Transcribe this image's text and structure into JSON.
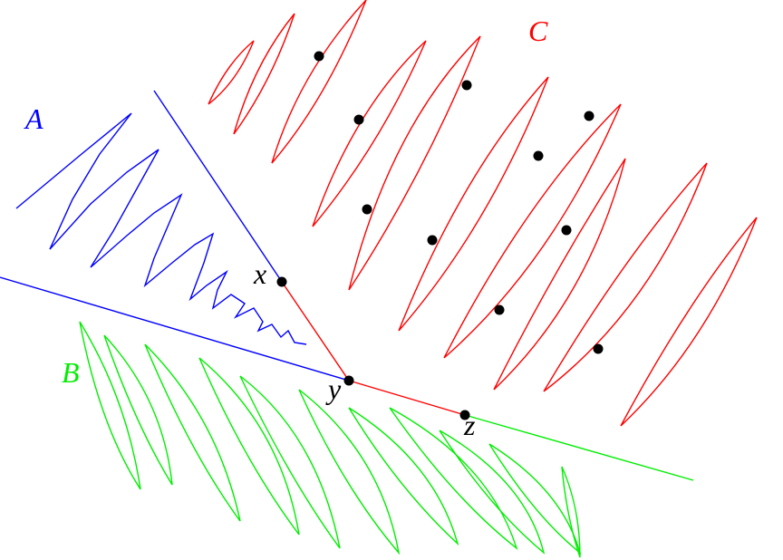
{
  "regions": [
    {
      "label": "A"
    },
    {
      "label": "B"
    },
    {
      "label": "C"
    }
  ],
  "points": [
    {
      "label": "x"
    },
    {
      "label": "y"
    },
    {
      "label": "z"
    }
  ]
}
